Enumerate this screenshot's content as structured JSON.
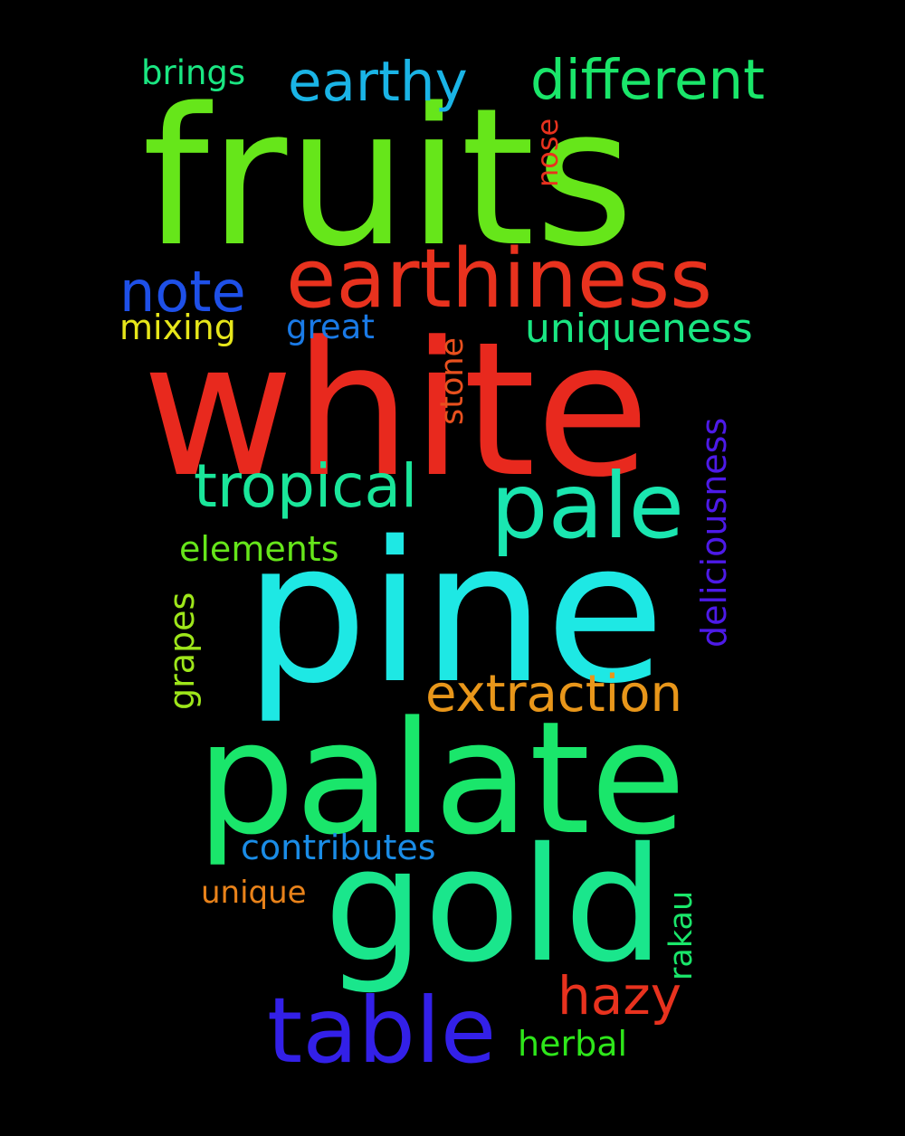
{
  "background_color": "#000000",
  "words": [
    {
      "text": "fruits",
      "color": "#66e61a"
    },
    {
      "text": "white",
      "color": "#e8291e"
    },
    {
      "text": "pine",
      "color": "#1ee8e4"
    },
    {
      "text": "palate",
      "color": "#1ae66b"
    },
    {
      "text": "gold",
      "color": "#1ae68c"
    },
    {
      "text": "earthiness",
      "color": "#e8321e"
    },
    {
      "text": "table",
      "color": "#3320e8"
    },
    {
      "text": "pale",
      "color": "#1ae6b0"
    },
    {
      "text": "tropical",
      "color": "#1ae69a"
    },
    {
      "text": "different",
      "color": "#1ae66a"
    },
    {
      "text": "earthy",
      "color": "#1ab4e6"
    },
    {
      "text": "note",
      "color": "#1e50e8"
    },
    {
      "text": "extraction",
      "color": "#e8961a"
    },
    {
      "text": "hazy",
      "color": "#e8321e"
    },
    {
      "text": "uniqueness",
      "color": "#1ae682"
    },
    {
      "text": "deliciousness",
      "color": "#4d1ae8"
    },
    {
      "text": "stone",
      "color": "#e8501e"
    },
    {
      "text": "contributes",
      "color": "#1a8ce6"
    },
    {
      "text": "mixing",
      "color": "#e6e61a"
    },
    {
      "text": "great",
      "color": "#1a7ae6"
    },
    {
      "text": "elements",
      "color": "#66e61a"
    },
    {
      "text": "grapes",
      "color": "#9ee61a"
    },
    {
      "text": "brings",
      "color": "#1ae682"
    },
    {
      "text": "nose",
      "color": "#e8321e"
    },
    {
      "text": "unique",
      "color": "#e8821a"
    },
    {
      "text": "rakau",
      "color": "#1ae66a"
    },
    {
      "text": "herbal",
      "color": "#2ee61a"
    }
  ]
}
